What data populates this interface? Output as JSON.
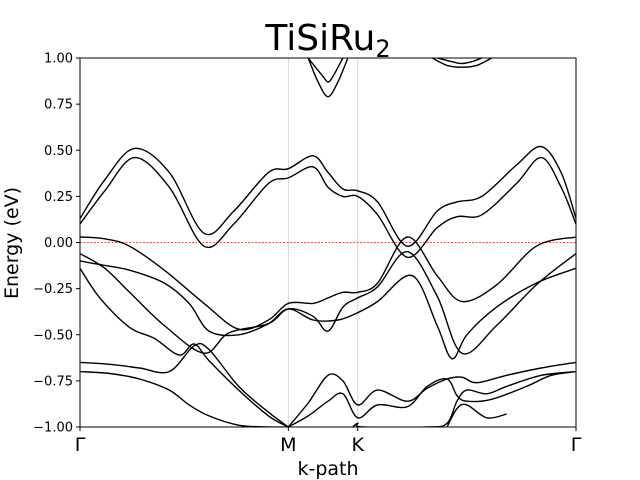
{
  "chart_data": {
    "type": "line",
    "title": "TiSiRu",
    "title_subscript": "2",
    "xlabel": "k-path",
    "ylabel": "Energy (eV)",
    "ylim": [
      -1.0,
      1.0
    ],
    "y_ticks": [
      {
        "value": -1.0,
        "label": "−1.00"
      },
      {
        "value": -0.75,
        "label": "−0.75"
      },
      {
        "value": -0.5,
        "label": "−0.50"
      },
      {
        "value": -0.25,
        "label": "−0.25"
      },
      {
        "value": 0.0,
        "label": "0.00"
      },
      {
        "value": 0.25,
        "label": "0.25"
      },
      {
        "value": 0.5,
        "label": "0.50"
      },
      {
        "value": 0.75,
        "label": "0.75"
      },
      {
        "value": 1.0,
        "label": "1.00"
      }
    ],
    "k_points": [
      {
        "label": "Γ",
        "x": 0.0
      },
      {
        "label": "M",
        "x": 0.42
      },
      {
        "label": "K",
        "x": 0.56
      },
      {
        "label": "Γ",
        "x": 1.0
      }
    ],
    "xlim": [
      0.0,
      1.0
    ],
    "fermi_level": {
      "y": 0.0,
      "color": "#e8202a",
      "style": "dashed"
    },
    "line_color": "#000000",
    "grid": "vertical lines at high-symmetry points",
    "series": [
      {
        "x": [
          0.0,
          0.05,
          0.11,
          0.18,
          0.25,
          0.31,
          0.38,
          0.42,
          0.47,
          0.5,
          0.53,
          0.56,
          0.6,
          0.66,
          0.72,
          0.76,
          0.81,
          0.88,
          0.93,
          0.97,
          1.0
        ],
        "values": [
          0.1,
          0.28,
          0.46,
          0.3,
          -0.02,
          0.1,
          0.32,
          0.35,
          0.41,
          0.3,
          0.25,
          0.25,
          0.15,
          -0.08,
          0.08,
          0.14,
          0.15,
          0.32,
          0.46,
          0.3,
          0.1
        ]
      },
      {
        "x": [
          0.0,
          0.05,
          0.11,
          0.18,
          0.25,
          0.31,
          0.38,
          0.42,
          0.47,
          0.5,
          0.53,
          0.56,
          0.6,
          0.66,
          0.72,
          0.76,
          0.81,
          0.88,
          0.93,
          0.97,
          1.0
        ],
        "values": [
          0.13,
          0.34,
          0.51,
          0.38,
          0.05,
          0.17,
          0.38,
          0.4,
          0.47,
          0.38,
          0.29,
          0.28,
          0.22,
          -0.02,
          0.17,
          0.22,
          0.25,
          0.42,
          0.52,
          0.38,
          0.13
        ]
      },
      {
        "x": [
          0.0,
          0.05,
          0.1,
          0.17,
          0.25,
          0.32,
          0.38,
          0.42,
          0.47,
          0.5,
          0.53,
          0.56,
          0.6,
          0.66,
          0.72,
          0.77,
          0.84,
          0.92,
          1.0
        ],
        "values": [
          0.03,
          0.02,
          -0.02,
          -0.15,
          -0.33,
          -0.47,
          -0.42,
          -0.33,
          -0.33,
          -0.3,
          -0.27,
          -0.27,
          -0.22,
          0.03,
          -0.18,
          -0.32,
          -0.23,
          -0.02,
          0.03
        ]
      },
      {
        "x": [
          0.0,
          0.05,
          0.1,
          0.17,
          0.25,
          0.3,
          0.38,
          0.42,
          0.47,
          0.5,
          0.53,
          0.56,
          0.6,
          0.66,
          0.72,
          0.77,
          0.84,
          0.92,
          1.0
        ],
        "values": [
          -0.06,
          -0.14,
          -0.27,
          -0.45,
          -0.6,
          -0.49,
          -0.44,
          -0.36,
          -0.4,
          -0.48,
          -0.35,
          -0.3,
          -0.24,
          -0.05,
          -0.29,
          -0.6,
          -0.45,
          -0.23,
          -0.06
        ]
      },
      {
        "x": [
          0.0,
          0.04,
          0.1,
          0.17,
          0.22,
          0.26,
          0.32,
          0.38,
          0.42,
          0.47,
          0.52,
          0.56,
          0.6,
          0.67,
          0.72,
          0.75,
          0.78,
          0.84,
          0.92,
          1.0
        ],
        "values": [
          -0.1,
          -0.12,
          -0.15,
          -0.22,
          -0.33,
          -0.48,
          -0.5,
          -0.44,
          -0.36,
          -0.42,
          -0.42,
          -0.38,
          -0.32,
          -0.18,
          -0.45,
          -0.63,
          -0.5,
          -0.35,
          -0.22,
          -0.14
        ]
      },
      {
        "x": [
          0.0,
          0.04,
          0.1,
          0.15,
          0.2,
          0.23,
          0.26,
          0.32,
          0.38,
          0.42
        ],
        "values": [
          -0.14,
          -0.3,
          -0.46,
          -0.52,
          -0.61,
          -0.55,
          -0.64,
          -0.8,
          -0.94,
          -1.0
        ]
      },
      {
        "x": [
          0.0,
          0.06,
          0.12,
          0.18,
          0.23,
          0.26,
          0.32,
          0.38,
          0.42
        ],
        "values": [
          -0.65,
          -0.66,
          -0.68,
          -0.7,
          -0.56,
          -0.58,
          -0.78,
          -0.92,
          -1.0
        ]
      },
      {
        "x": [
          0.0,
          0.06,
          0.12,
          0.18,
          0.22,
          0.26,
          0.32,
          0.38,
          0.42
        ],
        "values": [
          -0.7,
          -0.71,
          -0.74,
          -0.8,
          -0.88,
          -0.94,
          -0.99,
          -1.0,
          -1.0
        ]
      },
      {
        "x": [
          0.42,
          0.46,
          0.5,
          0.53,
          0.56,
          0.6,
          0.66,
          0.7,
          0.74,
          0.77,
          0.8,
          0.86,
          0.93,
          1.0
        ],
        "values": [
          -1.0,
          -0.87,
          -0.72,
          -0.75,
          -0.88,
          -0.8,
          -0.86,
          -0.79,
          -0.74,
          -0.73,
          -0.76,
          -0.72,
          -0.68,
          -0.65
        ]
      },
      {
        "x": [
          0.42,
          0.46,
          0.5,
          0.53,
          0.56,
          0.6,
          0.66,
          0.7,
          0.74,
          0.76,
          0.78,
          0.83,
          0.9,
          0.95,
          1.0
        ],
        "values": [
          -1.0,
          -0.94,
          -0.86,
          -0.82,
          -0.95,
          -0.88,
          -0.89,
          -0.78,
          -0.74,
          -0.83,
          -0.86,
          -0.85,
          -0.78,
          -0.72,
          -0.7
        ]
      },
      {
        "x": [
          0.55,
          0.56,
          0.57,
          0.7,
          0.74,
          0.76,
          0.78,
          0.82,
          0.86,
          0.93,
          1.0
        ],
        "values": [
          -1.0,
          -0.98,
          -1.0,
          -1.0,
          -0.98,
          -0.86,
          -0.8,
          -0.82,
          -0.78,
          -0.72,
          -0.7
        ]
      },
      {
        "x": [
          0.74,
          0.76,
          0.78,
          0.82,
          0.86
        ],
        "values": [
          -1.0,
          -0.9,
          -0.88,
          -0.95,
          -0.93
        ]
      },
      {
        "x": [
          0.46,
          0.48,
          0.5,
          0.52,
          0.54
        ],
        "values": [
          1.0,
          0.87,
          0.79,
          0.87,
          1.0
        ]
      },
      {
        "x": [
          0.46,
          0.49,
          0.5,
          0.51,
          0.53
        ],
        "values": [
          1.0,
          0.9,
          0.87,
          0.9,
          1.0
        ]
      },
      {
        "x": [
          0.71,
          0.74,
          0.77,
          0.8,
          0.83
        ],
        "values": [
          1.0,
          0.96,
          0.95,
          0.96,
          1.0
        ]
      },
      {
        "x": [
          0.72,
          0.75,
          0.77,
          0.79,
          0.81
        ],
        "values": [
          1.0,
          0.98,
          0.97,
          0.98,
          1.0
        ]
      }
    ]
  }
}
